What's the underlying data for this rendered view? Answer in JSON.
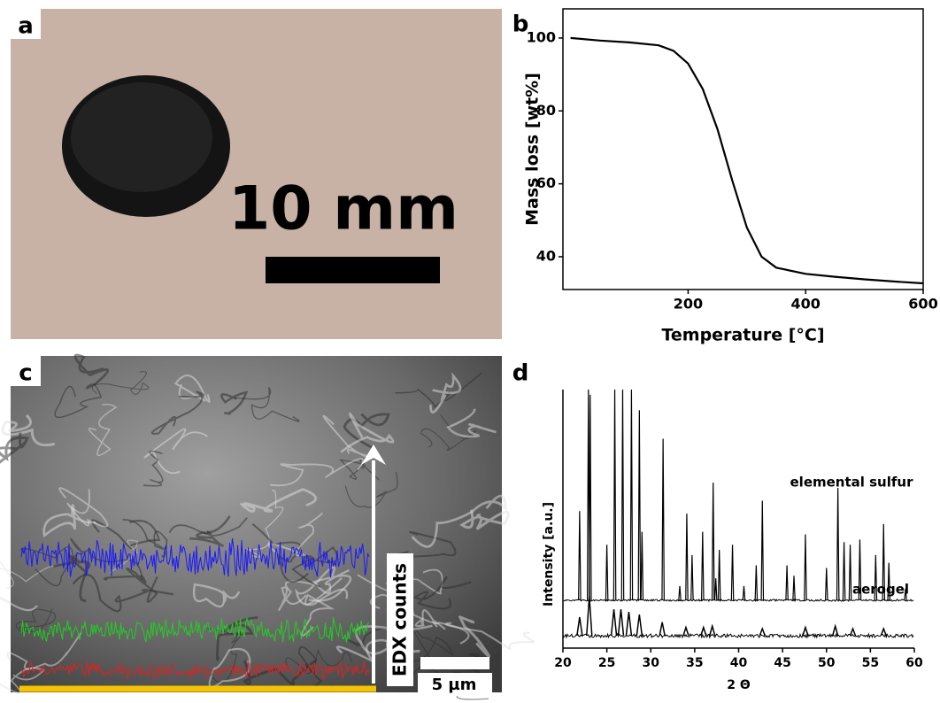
{
  "panels": {
    "a": {
      "label": "a",
      "scale_bar": "10 mm"
    },
    "c": {
      "label": "c",
      "scale_bar": "5 µm",
      "arrow_label": "EDX counts"
    }
  },
  "chart_data": [
    {
      "type": "line",
      "panel": "b",
      "x_label": "Temperature [°C]",
      "y_label": "Mass loss [wt%]",
      "x": [
        0,
        50,
        100,
        150,
        175,
        200,
        225,
        250,
        275,
        300,
        325,
        350,
        400,
        450,
        500,
        550,
        600
      ],
      "series": [
        {
          "color": "#000000",
          "values": [
            100,
            99.3,
            98.8,
            98,
            96.5,
            93,
            86,
            75,
            61,
            48,
            40,
            37,
            35.3,
            34.5,
            33.8,
            33.2,
            32.7
          ]
        }
      ],
      "xlim": [
        -13,
        600
      ],
      "ylim": [
        31,
        108
      ],
      "xticks": [
        200,
        400,
        600
      ],
      "yticks": [
        40,
        60,
        80,
        100
      ]
    },
    {
      "type": "peaks",
      "panel": "d",
      "x_label": "2 Θ",
      "y_label": "Intensity [a.u.]",
      "annotations": [
        "elemental sulfur",
        "aerogel"
      ],
      "series": [
        {
          "color": "#000000",
          "x": [
            21.9,
            22.9,
            23.1,
            25.0,
            25.9,
            26.8,
            27.8,
            28.7,
            29.0,
            31.4,
            33.3,
            34.1,
            34.7,
            35.9,
            37.1,
            37.4,
            37.8,
            39.3,
            40.6,
            42.0,
            42.7,
            45.5,
            46.3,
            47.6,
            50.0,
            51.3,
            52.0,
            52.7,
            53.8,
            55.6,
            56.5,
            57.1,
            59.0
          ],
          "values": [
            53,
            100,
            98,
            40,
            100,
            100,
            100,
            92,
            45,
            81,
            24,
            52,
            36,
            45,
            64,
            27,
            38,
            40,
            24,
            32,
            57,
            32,
            28,
            44,
            31,
            62,
            41,
            40,
            42,
            36,
            48,
            33,
            23
          ]
        },
        {
          "color": "#000000",
          "x": [
            21.9,
            23.0,
            25.8,
            26.6,
            27.5,
            28.7,
            31.3,
            34.0,
            36.0,
            37.0,
            42.7,
            47.6,
            51.0,
            53.0,
            56.5
          ],
          "values": [
            12,
            20,
            15,
            15,
            14,
            13,
            10,
            8,
            8,
            8.5,
            7.5,
            8,
            8.5,
            7.5,
            7.5
          ]
        }
      ],
      "xlim": [
        20,
        60
      ],
      "ylim": [
        0,
        100
      ],
      "xticks": [
        20,
        25,
        30,
        35,
        40,
        45,
        50,
        55,
        60
      ]
    }
  ]
}
